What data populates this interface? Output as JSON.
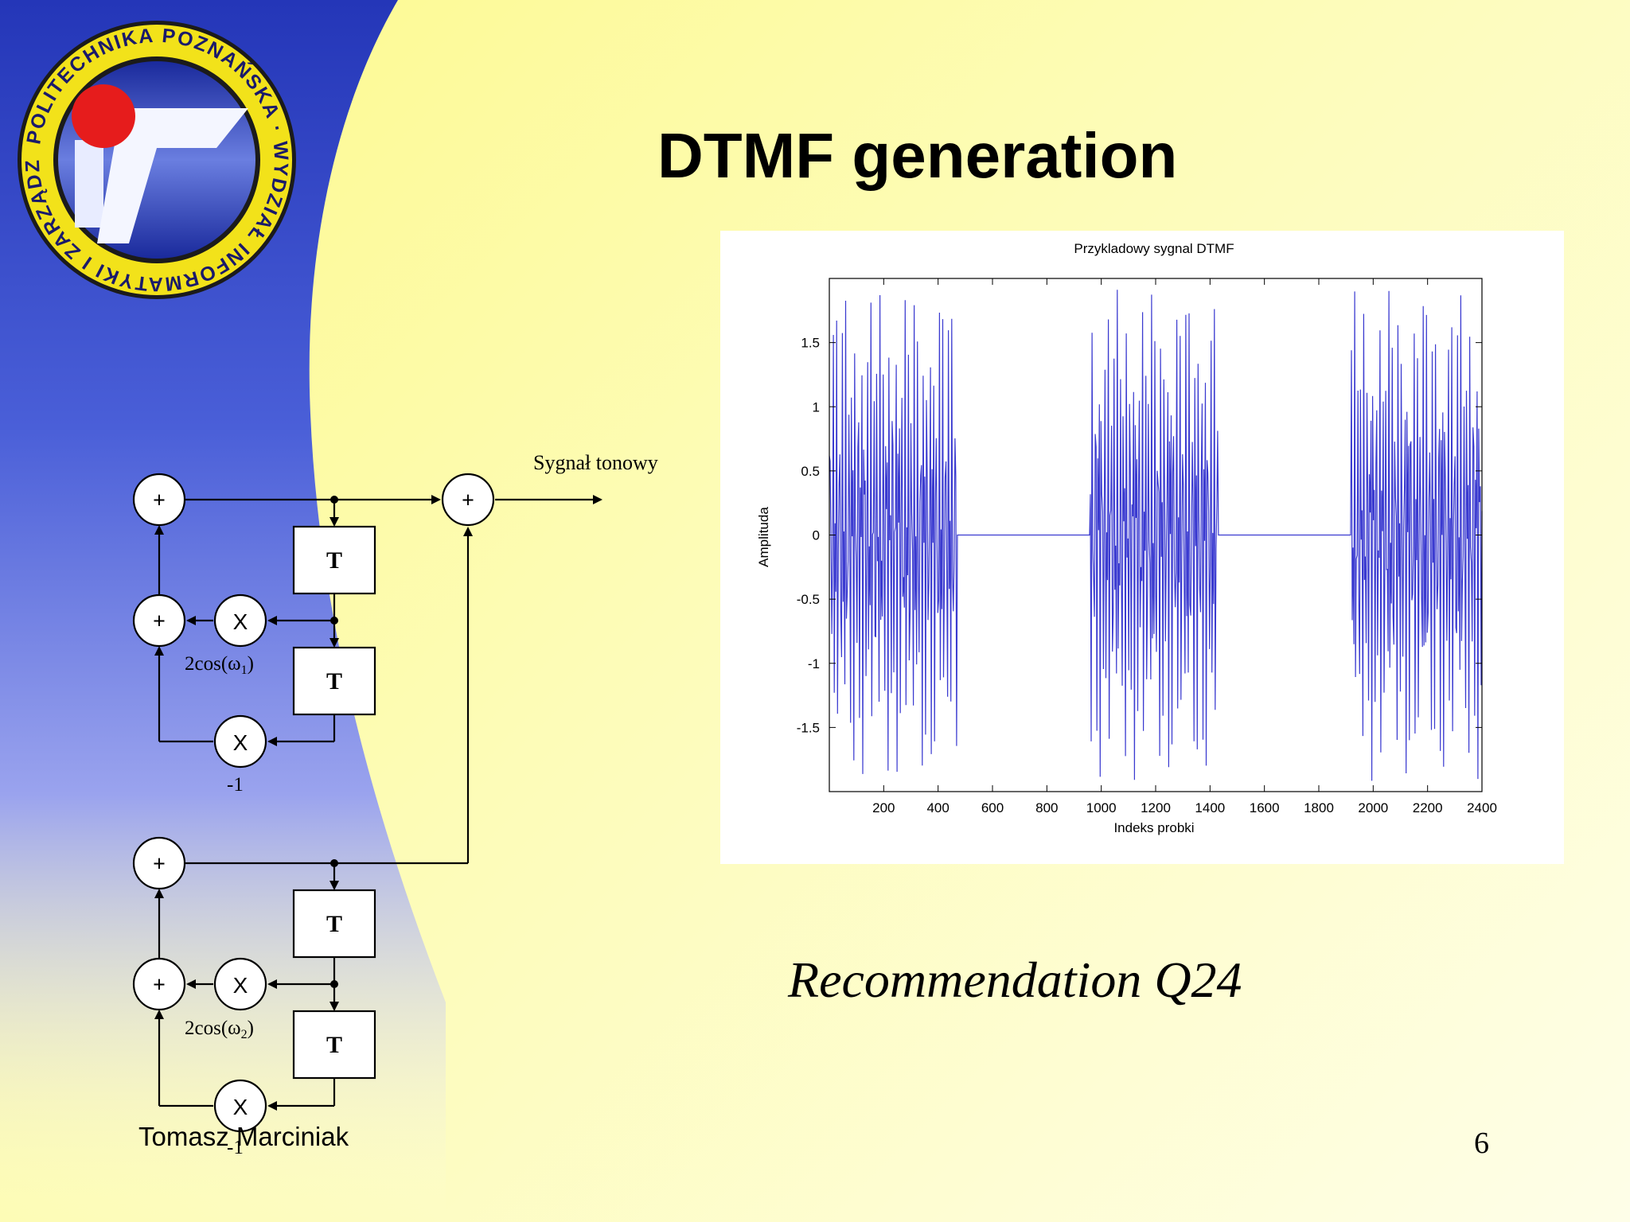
{
  "slide": {
    "title": "DTMF generation",
    "recommendation": "Recommendation Q24",
    "author": "Tomasz Marciniak",
    "page_number": "6"
  },
  "logo": {
    "ring_text": "POLITECHNIKA POZNAŃSKA · WYDZIAŁ INFORMATYKI I ZARZĄDZANIA",
    "ring_color": "#f2e21a",
    "dot_color": "#e61c1c"
  },
  "diagram": {
    "output_label": "Sygnał tonowy",
    "adder_symbol": "+",
    "delay_label": "T",
    "multiplier_symbol": "X",
    "coef1_prefix": "2cos(ω",
    "coef1_sub": "1",
    "coef2_prefix": "2cos(ω",
    "coef2_sub": "2",
    "coef_suffix": ")",
    "neg_one": "-1"
  },
  "chart_data": {
    "type": "line",
    "title": "Przykladowy sygnal DTMF",
    "xlabel": "Indeks probki",
    "ylabel": "Amplituda",
    "xlim": [
      0,
      2400
    ],
    "ylim": [
      -2,
      2
    ],
    "xticks": [
      200,
      400,
      600,
      800,
      1000,
      1200,
      1400,
      1600,
      1800,
      2000,
      2200,
      2400
    ],
    "yticks": [
      1.5,
      1,
      0.5,
      0,
      -0.5,
      -1,
      -1.5
    ],
    "tone_bursts": [
      [
        0,
        470
      ],
      [
        960,
        1430
      ],
      [
        1920,
        2400
      ]
    ],
    "silence_value": 0,
    "peak_amplitude": 2,
    "line_color": "#3a3ad0",
    "grid": false
  }
}
